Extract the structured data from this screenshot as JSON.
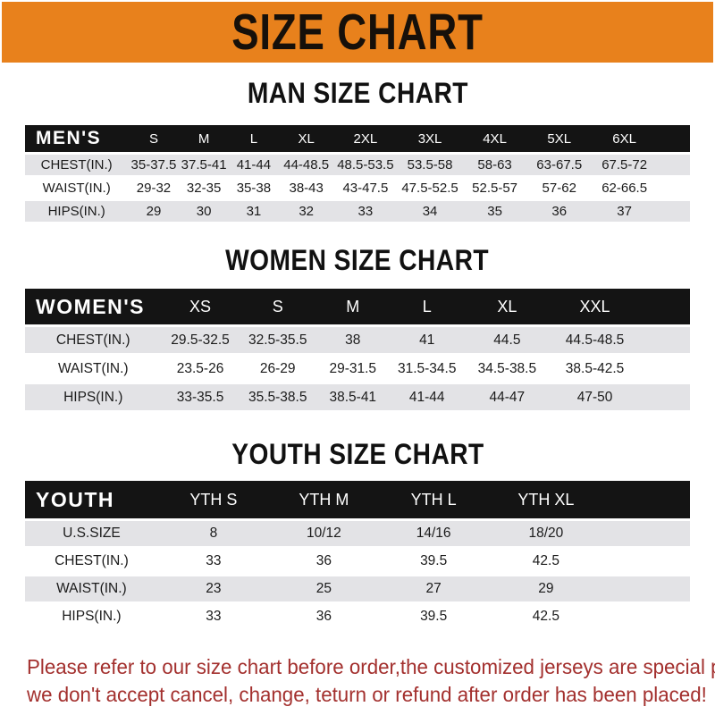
{
  "banner": {
    "title": "SIZE CHART",
    "bg_color": "#E8811C",
    "text_color": "#16100a"
  },
  "colors": {
    "header_bar": "#141414",
    "row_gray": "#E3E3E6",
    "row_white": "#ffffff",
    "footer_red": "#A3302E"
  },
  "sections": [
    {
      "heading": "MAN SIZE CHART",
      "table": {
        "label": "MEN'S",
        "columns": [
          "S",
          "M",
          "L",
          "XL",
          "2XL",
          "3XL",
          "4XL",
          "5XL",
          "6XL"
        ],
        "rows": [
          {
            "label": "CHEST(IN.)",
            "values": [
              "35-37.5",
              "37.5-41",
              "41-44",
              "44-48.5",
              "48.5-53.5",
              "53.5-58",
              "58-63",
              "63-67.5",
              "67.5-72"
            ]
          },
          {
            "label": "WAIST(IN.)",
            "values": [
              "29-32",
              "32-35",
              "35-38",
              "38-43",
              "43-47.5",
              "47.5-52.5",
              "52.5-57",
              "57-62",
              "62-66.5"
            ]
          },
          {
            "label": "HIPS(IN.)",
            "values": [
              "29",
              "30",
              "31",
              "32",
              "33",
              "34",
              "35",
              "36",
              "37"
            ]
          }
        ]
      }
    },
    {
      "heading": "WOMEN SIZE CHART",
      "table": {
        "label": "WOMEN'S",
        "columns": [
          "XS",
          "S",
          "M",
          "L",
          "XL",
          "XXL"
        ],
        "rows": [
          {
            "label": "CHEST(IN.)",
            "values": [
              "29.5-32.5",
              "32.5-35.5",
              "38",
              "41",
              "44.5",
              "44.5-48.5"
            ]
          },
          {
            "label": "WAIST(IN.)",
            "values": [
              "23.5-26",
              "26-29",
              "29-31.5",
              "31.5-34.5",
              "34.5-38.5",
              "38.5-42.5"
            ]
          },
          {
            "label": "HIPS(IN.)",
            "values": [
              "33-35.5",
              "35.5-38.5",
              "38.5-41",
              "41-44",
              "44-47",
              "47-50"
            ]
          }
        ]
      }
    },
    {
      "heading": "YOUTH SIZE CHART",
      "table": {
        "label": "YOUTH",
        "columns": [
          "YTH S",
          "YTH M",
          "YTH L",
          "YTH XL"
        ],
        "rows": [
          {
            "label": "U.S.SIZE",
            "values": [
              "8",
              "10/12",
              "14/16",
              "18/20"
            ]
          },
          {
            "label": "CHEST(IN.)",
            "values": [
              "33",
              "36",
              "39.5",
              "42.5"
            ]
          },
          {
            "label": "WAIST(IN.)",
            "values": [
              "23",
              "25",
              "27",
              "29"
            ]
          },
          {
            "label": "HIPS(IN.)",
            "values": [
              "33",
              "36",
              "39.5",
              "42.5"
            ]
          }
        ]
      }
    }
  ],
  "footer": {
    "line1": "Please refer to our size chart before order,the customized jerseys are special products,",
    "line2": "we don't accept cancel, change, teturn or refund after order has been placed!"
  },
  "chart_data": [
    {
      "type": "table",
      "title": "MAN SIZE CHART",
      "corner_label": "MEN'S",
      "columns": [
        "S",
        "M",
        "L",
        "XL",
        "2XL",
        "3XL",
        "4XL",
        "5XL",
        "6XL"
      ],
      "rows": [
        [
          "CHEST(IN.)",
          "35-37.5",
          "37.5-41",
          "41-44",
          "44-48.5",
          "48.5-53.5",
          "53.5-58",
          "58-63",
          "63-67.5",
          "67.5-72"
        ],
        [
          "WAIST(IN.)",
          "29-32",
          "32-35",
          "35-38",
          "38-43",
          "43-47.5",
          "47.5-52.5",
          "52.5-57",
          "57-62",
          "62-66.5"
        ],
        [
          "HIPS(IN.)",
          "29",
          "30",
          "31",
          "32",
          "33",
          "34",
          "35",
          "36",
          "37"
        ]
      ]
    },
    {
      "type": "table",
      "title": "WOMEN SIZE CHART",
      "corner_label": "WOMEN'S",
      "columns": [
        "XS",
        "S",
        "M",
        "L",
        "XL",
        "XXL"
      ],
      "rows": [
        [
          "CHEST(IN.)",
          "29.5-32.5",
          "32.5-35.5",
          "38",
          "41",
          "44.5",
          "44.5-48.5"
        ],
        [
          "WAIST(IN.)",
          "23.5-26",
          "26-29",
          "29-31.5",
          "31.5-34.5",
          "34.5-38.5",
          "38.5-42.5"
        ],
        [
          "HIPS(IN.)",
          "33-35.5",
          "35.5-38.5",
          "38.5-41",
          "41-44",
          "44-47",
          "47-50"
        ]
      ]
    },
    {
      "type": "table",
      "title": "YOUTH SIZE CHART",
      "corner_label": "YOUTH",
      "columns": [
        "YTH S",
        "YTH M",
        "YTH L",
        "YTH XL"
      ],
      "rows": [
        [
          "U.S.SIZE",
          "8",
          "10/12",
          "14/16",
          "18/20"
        ],
        [
          "CHEST(IN.)",
          "33",
          "36",
          "39.5",
          "42.5"
        ],
        [
          "WAIST(IN.)",
          "23",
          "25",
          "27",
          "29"
        ],
        [
          "HIPS(IN.)",
          "33",
          "36",
          "39.5",
          "42.5"
        ]
      ]
    }
  ]
}
